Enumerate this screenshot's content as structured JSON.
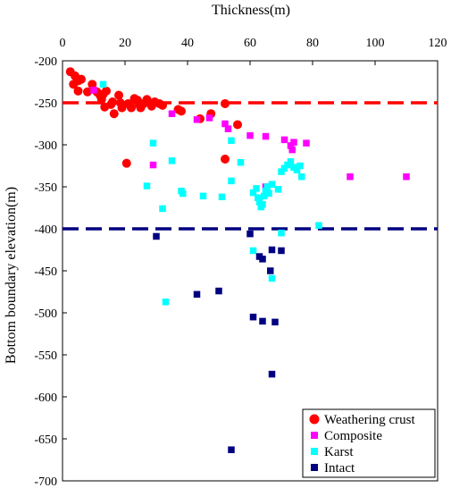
{
  "chart_data": {
    "type": "scatter",
    "xlabel": "Thickness(m)",
    "ylabel": "Bottom boundary elevation(m)",
    "xlim": [
      0,
      120
    ],
    "ylim": [
      -700,
      -200
    ],
    "x_ticks": [
      "0",
      "20",
      "40",
      "60",
      "80",
      "100",
      "120"
    ],
    "y_ticks": [
      "-200",
      "-250",
      "-300",
      "-350",
      "-400",
      "-450",
      "-500",
      "-550",
      "-600",
      "-650",
      "-700"
    ],
    "x_axis_position": "top",
    "grid": false,
    "legend_position": "bottom-right",
    "reference_lines": [
      {
        "y": -250,
        "color": "#ff0000",
        "style": "dashed"
      },
      {
        "y": -400,
        "color": "#000080",
        "style": "dashed"
      }
    ],
    "series": [
      {
        "name": "Weathering crust",
        "marker": "circle",
        "color": "#ff0000",
        "points": [
          [
            2.5,
            -213
          ],
          [
            4,
            -218
          ],
          [
            5,
            -224
          ],
          [
            3.5,
            -228
          ],
          [
            6,
            -222
          ],
          [
            5,
            -236
          ],
          [
            8,
            -237
          ],
          [
            9.5,
            -228
          ],
          [
            11,
            -237
          ],
          [
            12,
            -241
          ],
          [
            13,
            -240
          ],
          [
            14,
            -236
          ],
          [
            12.5,
            -246
          ],
          [
            13.5,
            -255
          ],
          [
            15.5,
            -252
          ],
          [
            16,
            -249
          ],
          [
            16.5,
            -263
          ],
          [
            18,
            -241
          ],
          [
            18.5,
            -250
          ],
          [
            19,
            -256
          ],
          [
            21,
            -251
          ],
          [
            22,
            -256
          ],
          [
            23,
            -245
          ],
          [
            24,
            -247
          ],
          [
            24.5,
            -252
          ],
          [
            25,
            -256
          ],
          [
            26,
            -251
          ],
          [
            27,
            -246
          ],
          [
            28.5,
            -254
          ],
          [
            29.5,
            -249
          ],
          [
            31,
            -251
          ],
          [
            32,
            -253
          ],
          [
            37,
            -258
          ],
          [
            38,
            -260
          ],
          [
            44,
            -269
          ],
          [
            47.5,
            -263
          ],
          [
            52,
            -251
          ],
          [
            56,
            -276
          ],
          [
            20.5,
            -322
          ],
          [
            52,
            -317
          ]
        ]
      },
      {
        "name": "Composite",
        "marker": "square",
        "color": "#ff00ff",
        "points": [
          [
            10,
            -235
          ],
          [
            35,
            -263
          ],
          [
            43,
            -270
          ],
          [
            47,
            -268
          ],
          [
            52,
            -275
          ],
          [
            53,
            -281
          ],
          [
            60,
            -289
          ],
          [
            65,
            -290
          ],
          [
            71,
            -294
          ],
          [
            73,
            -301
          ],
          [
            74,
            -297
          ],
          [
            73.5,
            -306
          ],
          [
            78,
            -298
          ],
          [
            29,
            -324
          ],
          [
            65,
            -350
          ],
          [
            92,
            -338
          ],
          [
            110,
            -338
          ]
        ]
      },
      {
        "name": "Karst",
        "marker": "square",
        "color": "#00ffff",
        "points": [
          [
            13,
            -228
          ],
          [
            29,
            -298
          ],
          [
            35,
            -319
          ],
          [
            54,
            -295
          ],
          [
            27,
            -349
          ],
          [
            32,
            -376
          ],
          [
            38,
            -355
          ],
          [
            38.5,
            -358
          ],
          [
            45,
            -361
          ],
          [
            51,
            -362
          ],
          [
            54,
            -343
          ],
          [
            57,
            -321
          ],
          [
            61,
            -357
          ],
          [
            62,
            -352
          ],
          [
            62.5,
            -363
          ],
          [
            63,
            -368
          ],
          [
            63.5,
            -374
          ],
          [
            64,
            -371
          ],
          [
            64.5,
            -361
          ],
          [
            65,
            -355
          ],
          [
            65.5,
            -350
          ],
          [
            66,
            -358
          ],
          [
            67,
            -347
          ],
          [
            69,
            -353
          ],
          [
            70,
            -332
          ],
          [
            71,
            -328
          ],
          [
            72,
            -324
          ],
          [
            73,
            -320
          ],
          [
            74,
            -327
          ],
          [
            75,
            -330
          ],
          [
            76,
            -325
          ],
          [
            76.5,
            -338
          ],
          [
            61,
            -426
          ],
          [
            70,
            -405
          ],
          [
            67,
            -459
          ],
          [
            82,
            -396
          ],
          [
            33,
            -487
          ]
        ]
      },
      {
        "name": "Intact",
        "marker": "square",
        "color": "#000080",
        "points": [
          [
            30,
            -409
          ],
          [
            60,
            -406
          ],
          [
            63,
            -433
          ],
          [
            64,
            -436
          ],
          [
            67,
            -425
          ],
          [
            66.5,
            -450
          ],
          [
            70,
            -426
          ],
          [
            43,
            -478
          ],
          [
            50,
            -474
          ],
          [
            61,
            -505
          ],
          [
            64,
            -510
          ],
          [
            68,
            -511
          ],
          [
            67,
            -573
          ],
          [
            54,
            -663
          ]
        ]
      }
    ]
  }
}
